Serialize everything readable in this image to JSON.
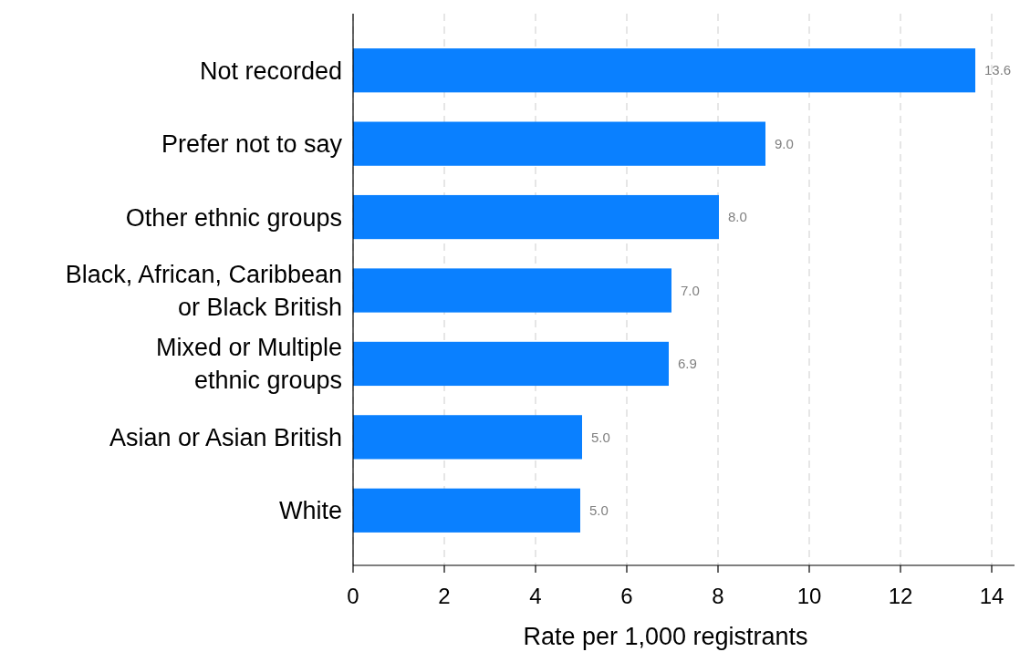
{
  "chart_data": {
    "type": "bar",
    "orientation": "horizontal",
    "categories": [
      "Not recorded",
      "Prefer not to say",
      "Other ethnic groups",
      "Black, African, Caribbean\nor Black British",
      "Mixed or Multiple\nethnic groups",
      "Asian or Asian British",
      "White"
    ],
    "values": [
      13.64,
      9.04,
      8.02,
      6.98,
      6.92,
      5.02,
      4.98
    ],
    "value_labels": [
      "13.6",
      "9.0",
      "8.0",
      "7.0",
      "6.9",
      "5.0",
      "5.0"
    ],
    "color": "#0a80ff",
    "xlabel": "Rate per 1,000 registrants",
    "xlim": [
      0,
      14.5
    ],
    "xticks": [
      0,
      2,
      4,
      6,
      8,
      10,
      12,
      14
    ],
    "grid": "x"
  }
}
